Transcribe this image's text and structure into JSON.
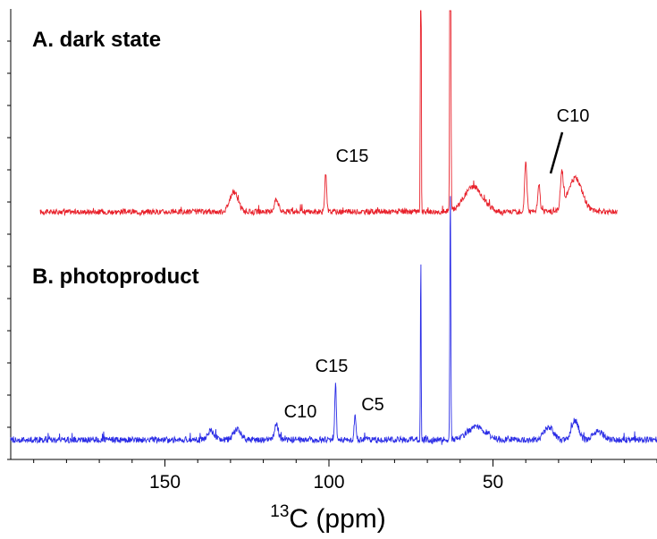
{
  "chart_data": {
    "type": "line",
    "xlabel": {
      "sup": "13",
      "main": "C (ppm)"
    },
    "xlim": [
      197,
      0
    ],
    "xticks": [
      150,
      100,
      50
    ],
    "x_minor_step": 10,
    "y_minor_ticks": 14,
    "grid": false,
    "reversed_x": true,
    "series": [
      {
        "name": "A. dark state",
        "color": "#e8202a",
        "x_range": [
          188,
          12
        ],
        "baseline_slope": 0.02,
        "noise": 3.0,
        "features": [
          {
            "x": 129,
            "h": 22,
            "w": 1.8
          },
          {
            "x": 116,
            "h": 14,
            "w": 0.9
          },
          {
            "x": 101,
            "h": 42,
            "w": 0.4
          },
          {
            "x": 72,
            "h": 640,
            "w": 0.15
          },
          {
            "x": 63,
            "h": 640,
            "w": 0.2
          },
          {
            "x": 56,
            "h": 28,
            "w": 4
          },
          {
            "x": 40,
            "h": 55,
            "w": 0.5
          },
          {
            "x": 36,
            "h": 30,
            "w": 0.5
          },
          {
            "x": 29,
            "h": 40,
            "w": 0.6
          },
          {
            "x": 25,
            "h": 38,
            "w": 3
          }
        ],
        "annotations": [
          {
            "label": "C15",
            "x": 101
          },
          {
            "label": "C10",
            "x": 34
          }
        ]
      },
      {
        "name": "B. photoproduct",
        "color": "#2a2ce6",
        "x_range": [
          197,
          0
        ],
        "baseline_slope": 0.0,
        "noise": 3.5,
        "features": [
          {
            "x": 136,
            "h": 10,
            "w": 1.5
          },
          {
            "x": 128,
            "h": 12,
            "w": 1.5
          },
          {
            "x": 116,
            "h": 18,
            "w": 0.8
          },
          {
            "x": 98,
            "h": 62,
            "w": 0.35
          },
          {
            "x": 92,
            "h": 28,
            "w": 0.4
          },
          {
            "x": 72,
            "h": 210,
            "w": 0.15
          },
          {
            "x": 63,
            "h": 280,
            "w": 0.2
          },
          {
            "x": 55,
            "h": 14,
            "w": 4
          },
          {
            "x": 33,
            "h": 14,
            "w": 2
          },
          {
            "x": 25,
            "h": 22,
            "w": 1.5
          },
          {
            "x": 18,
            "h": 10,
            "w": 2
          }
        ],
        "annotations": [
          {
            "label": "C10",
            "x": 117
          },
          {
            "label": "C15",
            "x": 98
          },
          {
            "label": "C5",
            "x": 92
          }
        ]
      }
    ]
  }
}
